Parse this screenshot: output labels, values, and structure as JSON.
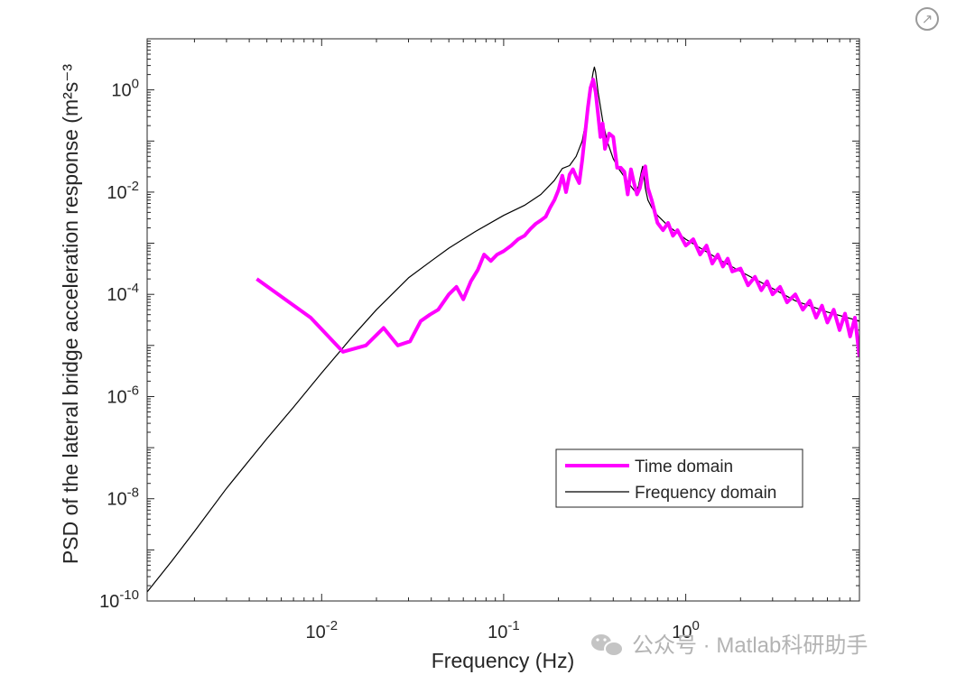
{
  "share_icon": "external-link-icon",
  "watermark": {
    "icon": "wechat-icon",
    "text": "公众号 · Matlab科研助手"
  },
  "chart_data": {
    "type": "line",
    "scale": "loglog",
    "xlabel": "Frequency (Hz)",
    "ylabel": "PSD of the lateral bridge acceleration response (m²s⁻³",
    "xlim": [
      0.0011,
      9.0
    ],
    "ylim": [
      1e-10,
      10.0
    ],
    "x_ticks": [
      {
        "value": 0.01,
        "base": "10",
        "exp": "-2"
      },
      {
        "value": 0.1,
        "base": "10",
        "exp": "-1"
      },
      {
        "value": 1,
        "base": "10",
        "exp": "0"
      }
    ],
    "y_ticks": [
      {
        "value": 1e-10,
        "base": "10",
        "exp": "-10"
      },
      {
        "value": 1e-08,
        "base": "10",
        "exp": "-8"
      },
      {
        "value": 1e-06,
        "base": "10",
        "exp": "-6"
      },
      {
        "value": 0.0001,
        "base": "10",
        "exp": "-4"
      },
      {
        "value": 0.01,
        "base": "10",
        "exp": "-2"
      },
      {
        "value": 1,
        "base": "10",
        "exp": "0"
      }
    ],
    "legend_position": "lower-right",
    "series": [
      {
        "name": "Time domain",
        "color": "#ff00ff",
        "x": [
          0.0044,
          0.0087,
          0.0131,
          0.0175,
          0.0219,
          0.0262,
          0.0306,
          0.035,
          0.0393,
          0.0437,
          0.05,
          0.055,
          0.06,
          0.066,
          0.072,
          0.078,
          0.085,
          0.092,
          0.1,
          0.11,
          0.12,
          0.13,
          0.14,
          0.15,
          0.16,
          0.17,
          0.18,
          0.19,
          0.2,
          0.21,
          0.22,
          0.23,
          0.24,
          0.25,
          0.26,
          0.27,
          0.28,
          0.29,
          0.3,
          0.31,
          0.32,
          0.33,
          0.34,
          0.35,
          0.36,
          0.38,
          0.4,
          0.42,
          0.44,
          0.46,
          0.48,
          0.5,
          0.52,
          0.54,
          0.56,
          0.58,
          0.6,
          0.62,
          0.65,
          0.7,
          0.75,
          0.8,
          0.85,
          0.9,
          1.0,
          1.1,
          1.2,
          1.3,
          1.4,
          1.5,
          1.6,
          1.7,
          1.8,
          2.0,
          2.2,
          2.4,
          2.6,
          2.8,
          3.0,
          3.3,
          3.6,
          4.0,
          4.4,
          4.8,
          5.2,
          5.6,
          6.0,
          6.5,
          7.0,
          7.5,
          8.0,
          8.5,
          9.0
        ],
        "values": [
          0.0002,
          3.5e-05,
          7.5e-06,
          1e-05,
          2.2e-05,
          1e-05,
          1.2e-05,
          3e-05,
          4e-05,
          5e-05,
          0.0001,
          0.00014,
          8e-05,
          0.00018,
          0.0003,
          0.0006,
          0.00045,
          0.0006,
          0.0007,
          0.0009,
          0.0012,
          0.0014,
          0.0019,
          0.0024,
          0.0028,
          0.0033,
          0.005,
          0.007,
          0.011,
          0.021,
          0.01,
          0.022,
          0.028,
          0.02,
          0.015,
          0.042,
          0.14,
          0.45,
          1.1,
          1.6,
          0.9,
          0.33,
          0.12,
          0.22,
          0.07,
          0.14,
          0.12,
          0.03,
          0.03,
          0.025,
          0.009,
          0.028,
          0.015,
          0.009,
          0.012,
          0.022,
          0.032,
          0.012,
          0.007,
          0.0025,
          0.0018,
          0.0025,
          0.0014,
          0.0018,
          0.0009,
          0.0012,
          0.0006,
          0.0009,
          0.0004,
          0.0006,
          0.00035,
          0.0005,
          0.00028,
          0.00032,
          0.00015,
          0.00022,
          0.00012,
          0.00018,
          0.0001,
          0.00014,
          7e-05,
          0.0001,
          5e-05,
          7.5e-05,
          3.5e-05,
          6e-05,
          2.8e-05,
          5e-05,
          2e-05,
          4.2e-05,
          1.5e-05,
          3.5e-05,
          6e-06
        ]
      },
      {
        "name": "Frequency domain",
        "color": "#000000",
        "x": [
          0.0011,
          0.0015,
          0.002,
          0.003,
          0.005,
          0.007,
          0.01,
          0.015,
          0.02,
          0.03,
          0.04,
          0.05,
          0.07,
          0.1,
          0.13,
          0.16,
          0.19,
          0.21,
          0.23,
          0.25,
          0.27,
          0.28,
          0.29,
          0.3,
          0.31,
          0.315,
          0.32,
          0.33,
          0.35,
          0.37,
          0.4,
          0.43,
          0.46,
          0.5,
          0.53,
          0.55,
          0.57,
          0.58,
          0.59,
          0.6,
          0.62,
          0.65,
          0.7,
          0.8,
          1.0,
          1.5,
          2.0,
          3.0,
          4.0,
          6.0,
          9.0
        ],
        "values": [
          1.5e-10,
          6e-10,
          2.3e-09,
          1.6e-08,
          1.5e-07,
          6.2e-07,
          2.9e-06,
          1.6e-05,
          5e-05,
          0.00021,
          0.00045,
          0.0008,
          0.0017,
          0.0035,
          0.0055,
          0.009,
          0.017,
          0.029,
          0.033,
          0.05,
          0.1,
          0.2,
          0.45,
          1.1,
          2.2,
          2.8,
          2.2,
          0.9,
          0.25,
          0.1,
          0.045,
          0.028,
          0.02,
          0.013,
          0.01,
          0.013,
          0.025,
          0.032,
          0.02,
          0.012,
          0.007,
          0.005,
          0.0035,
          0.0022,
          0.0012,
          0.0005,
          0.00028,
          0.00013,
          7.5e-05,
          4.5e-05,
          3e-05
        ]
      }
    ]
  }
}
